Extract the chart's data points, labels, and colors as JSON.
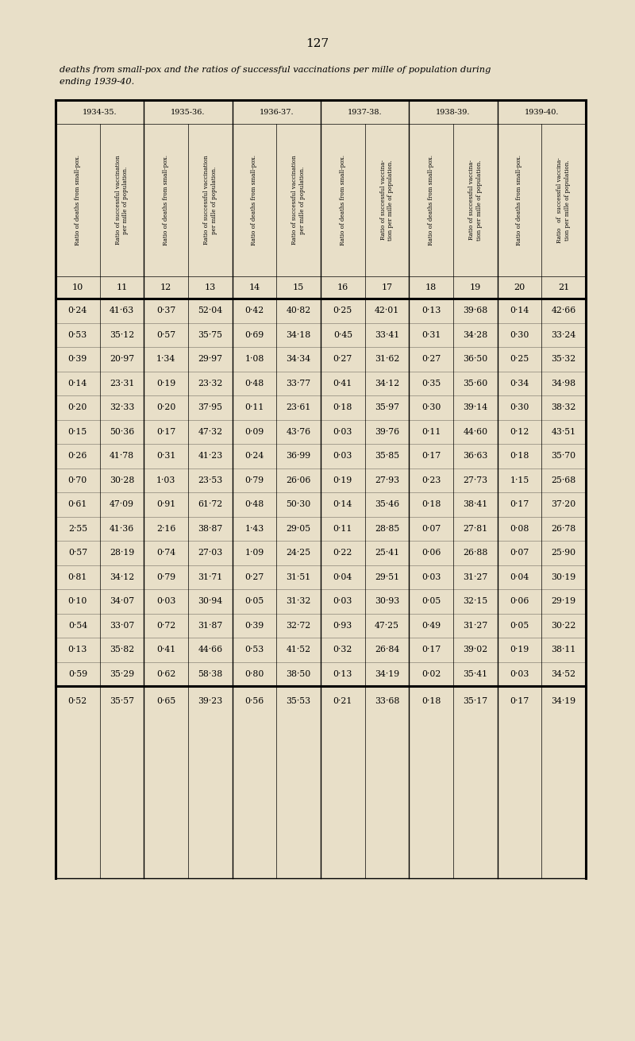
{
  "page_number": "127",
  "title_line1": "deaths from small-pox and the ratios of successful vaccinations per mille of population during",
  "title_line2": "ending 1939-40.",
  "bg_color": "#e8dfc8",
  "year_groups": [
    "1934-35.",
    "1935-36.",
    "1936-37.",
    "1937-38.",
    "1938-39.",
    "1939-40."
  ],
  "col_headers": [
    "Ratio of deaths from small-pox.",
    "Ratio of successful vaccination\nper mille of population.",
    "Ratio of deaths from small-pox.",
    "Ratio of successful vaccination\nper mille of population.",
    "Ratio of deaths from small-pox.",
    "Ratio of successful vaccination\nper mille of population.",
    "Ratio of deaths from small-pox.",
    "Ratio of successful vaccina-\ntion per mille of population.",
    "Ratio of deaths from small-pox.",
    "Ratio of successful vaccina-\ntion per mille of population.",
    "Ratio of deaths from small-pox.",
    "Ratio   of  successful vaccina-\ntion per mille of population."
  ],
  "col_numbers": [
    "10",
    "11",
    "12",
    "13",
    "14",
    "15",
    "16",
    "17",
    "18",
    "19",
    "20",
    "21"
  ],
  "data_rows": [
    [
      "0·24",
      "41·63",
      "0·37",
      "52·04",
      "0·42",
      "40·82",
      "0·25",
      "42·01",
      "0·13",
      "39·68",
      "0·14",
      "42·66"
    ],
    [
      "0·53",
      "35·12",
      "0·57",
      "35·75",
      "0·69",
      "34·18",
      "0·45",
      "33·41",
      "0·31",
      "34·28",
      "0·30",
      "33·24"
    ],
    [
      "0·39",
      "20·97",
      "1·34",
      "29·97",
      "1·08",
      "34·34",
      "0·27",
      "31·62",
      "0·27",
      "36·50",
      "0·25",
      "35·32"
    ],
    [
      "0·14",
      "23·31",
      "0·19",
      "23·32",
      "0·48",
      "33·77",
      "0·41",
      "34·12",
      "0·35",
      "35·60",
      "0·34",
      "34·98"
    ],
    [
      "0·20",
      "32·33",
      "0·20",
      "37·95",
      "0·11",
      "23·61",
      "0·18",
      "35·97",
      "0·30",
      "39·14",
      "0·30",
      "38·32"
    ],
    [
      "0·15",
      "50·36",
      "0·17",
      "47·32",
      "0·09",
      "43·76",
      "0·03",
      "39·76",
      "0·11",
      "44·60",
      "0·12",
      "43·51"
    ],
    [
      "0·26",
      "41·78",
      "0·31",
      "41·23",
      "0·24",
      "36·99",
      "0·03",
      "35·85",
      "0·17",
      "36·63",
      "0·18",
      "35·70"
    ],
    [
      "0·70",
      "30·28",
      "1·03",
      "23·53",
      "0·79",
      "26·06",
      "0·19",
      "27·93",
      "0·23",
      "27·73",
      "1·15",
      "25·68"
    ],
    [
      "0·61",
      "47·09",
      "0·91",
      "61·72",
      "0·48",
      "50·30",
      "0·14",
      "35·46",
      "0·18",
      "38·41",
      "0·17",
      "37·20"
    ],
    [
      "2·55",
      "41·36",
      "2·16",
      "38·87",
      "1·43",
      "29·05",
      "0·11",
      "28·85",
      "0·07",
      "27·81",
      "0·08",
      "26·78"
    ],
    [
      "0·57",
      "28·19",
      "0·74",
      "27·03",
      "1·09",
      "24·25",
      "0·22",
      "25·41",
      "0·06",
      "26·88",
      "0·07",
      "25·90"
    ],
    [
      "0·81",
      "34·12",
      "0·79",
      "31·71",
      "0·27",
      "31·51",
      "0·04",
      "29·51",
      "0·03",
      "31·27",
      "0·04",
      "30·19"
    ],
    [
      "0·10",
      "34·07",
      "0·03",
      "30·94",
      "0·05",
      "31·32",
      "0·03",
      "30·93",
      "0·05",
      "32·15",
      "0·06",
      "29·19"
    ],
    [
      "0·54",
      "33·07",
      "0·72",
      "31·87",
      "0·39",
      "32·72",
      "0·93",
      "47·25",
      "0·49",
      "31·27",
      "0·05",
      "30·22"
    ],
    [
      "0·13",
      "35·82",
      "0·41",
      "44·66",
      "0·53",
      "41·52",
      "0·32",
      "26·84",
      "0·17",
      "39·02",
      "0·19",
      "38·11"
    ],
    [
      "0·59",
      "35·29",
      "0·62",
      "58·38",
      "0·80",
      "38·50",
      "0·13",
      "34·19",
      "0·02",
      "35·41",
      "0·03",
      "34·52"
    ]
  ],
  "totals_row": [
    "0·52",
    "35·57",
    "0·65",
    "39·23",
    "0·56",
    "35·53",
    "0·21",
    "33·68",
    "0·18",
    "35·17",
    "0·17",
    "34·19"
  ]
}
